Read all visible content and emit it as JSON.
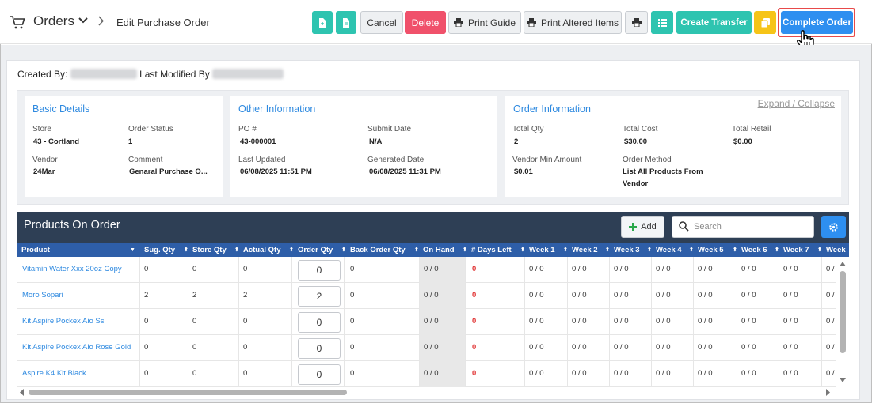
{
  "header": {
    "section_title": "Orders",
    "page_title": "Edit Purchase Order",
    "cancel_label": "Cancel",
    "delete_label": "Delete",
    "print_guide_label": "Print Guide",
    "print_altered_label": "Print Altered Items",
    "create_transfer_label": "Create Transfer",
    "complete_order_label": "Complete Order"
  },
  "meta": {
    "created_by_label": "Created By:",
    "last_modified_label": "Last Modified By"
  },
  "basic": {
    "title": "Basic Details",
    "store_label": "Store",
    "store_value": "43 - Cortland",
    "status_label": "Order Status",
    "status_value": "1",
    "vendor_label": "Vendor",
    "vendor_value": "24Mar",
    "comment_label": "Comment",
    "comment_value": "Genaral Purchase O..."
  },
  "other": {
    "title": "Other Information",
    "po_label": "PO #",
    "po_value": "43-000001",
    "submit_label": "Submit Date",
    "submit_value": "N/A",
    "updated_label": "Last Updated",
    "updated_value": "06/08/2025 11:51 PM",
    "generated_label": "Generated Date",
    "generated_value": "06/08/2025 11:31 PM"
  },
  "order_info": {
    "title": "Order Information",
    "expand_label": "Expand / Collapse",
    "total_qty_label": "Total Qty",
    "total_qty_value": "2",
    "total_cost_label": "Total Cost",
    "total_cost_value": "$30.00",
    "total_retail_label": "Total Retail",
    "total_retail_value": "$0.00",
    "vendor_min_label": "Vendor Min Amount",
    "vendor_min_value": "$0.01",
    "order_method_label": "Order Method",
    "order_method_value_1": "List All Products From",
    "order_method_value_2": "Vendor"
  },
  "products": {
    "title": "Products On Order",
    "add_label": "Add",
    "search_placeholder": "Search",
    "columns": [
      "Product",
      "Sug. Qty",
      "Store Qty",
      "Actual Qty",
      "Order Qty",
      "Back Order Qty",
      "On Hand",
      "# Days Left",
      "Week 1",
      "Week 2",
      "Week 3",
      "Week 4",
      "Week 5",
      "Week 6",
      "Week 7",
      "Week"
    ],
    "rows": [
      {
        "name": "Vitamin Water Xxx 20oz Copy",
        "sug": "0",
        "store": "0",
        "actual": "0",
        "order": "0",
        "back": "0",
        "onhand": "0 / 0",
        "days": "0",
        "w1": "0 / 0",
        "w2": "0 / 0",
        "w3": "0 / 0",
        "w4": "0 / 0",
        "w5": "0 / 0",
        "w6": "0 / 0",
        "w7": "0 / 0",
        "w8": "0 /"
      },
      {
        "name": "Moro Sopari",
        "sug": "2",
        "store": "2",
        "actual": "2",
        "order": "2",
        "back": "0",
        "onhand": "0 / 0",
        "days": "0",
        "w1": "0 / 0",
        "w2": "0 / 0",
        "w3": "0 / 0",
        "w4": "0 / 0",
        "w5": "0 / 0",
        "w6": "0 / 0",
        "w7": "0 / 0",
        "w8": "0 /"
      },
      {
        "name": "Kit Aspire Pockex Aio Ss",
        "sug": "0",
        "store": "0",
        "actual": "0",
        "order": "0",
        "back": "0",
        "onhand": "0 / 0",
        "days": "0",
        "w1": "0 / 0",
        "w2": "0 / 0",
        "w3": "0 / 0",
        "w4": "0 / 0",
        "w5": "0 / 0",
        "w6": "0 / 0",
        "w7": "0 / 0",
        "w8": "0 /"
      },
      {
        "name": "Kit Aspire Pockex Aio Rose Gold",
        "sug": "0",
        "store": "0",
        "actual": "0",
        "order": "0",
        "back": "0",
        "onhand": "0 / 0",
        "days": "0",
        "w1": "0 / 0",
        "w2": "0 / 0",
        "w3": "0 / 0",
        "w4": "0 / 0",
        "w5": "0 / 0",
        "w6": "0 / 0",
        "w7": "0 / 0",
        "w8": "0 /"
      },
      {
        "name": "Aspire K4 Kit Black",
        "sug": "0",
        "store": "0",
        "actual": "0",
        "order": "0",
        "back": "0",
        "onhand": "0 / 0",
        "days": "0",
        "w1": "0 / 0",
        "w2": "0 / 0",
        "w3": "0 / 0",
        "w4": "0 / 0",
        "w5": "0 / 0",
        "w6": "0 / 0",
        "w7": "0 / 0",
        "w8": "0 /"
      }
    ]
  },
  "colors": {
    "teal": "#2ec4b0",
    "red": "#f0516b",
    "blue": "#2e8ff0",
    "yellow": "#f6c418",
    "header_dark": "#2e3f55",
    "table_head": "#2e5ea8",
    "link": "#2f8ae0"
  },
  "icons": [
    "cart-icon",
    "chevron-down-icon",
    "chevron-right-icon",
    "file-plus-icon",
    "file-text-icon",
    "printer-icon",
    "list-icon",
    "copy-icon",
    "hand-cursor-icon",
    "plus-icon",
    "search-icon",
    "gear-icon",
    "sort-icon"
  ]
}
